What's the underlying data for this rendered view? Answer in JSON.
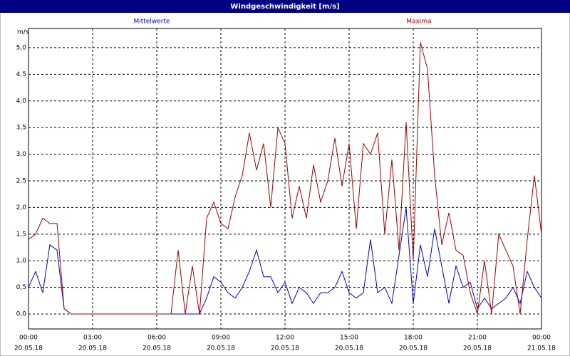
{
  "chart_data": {
    "type": "line",
    "title": "Windgeschwindigkeit [m/s]",
    "y_unit": "m/s",
    "x": [
      0,
      20,
      40,
      60,
      80,
      100,
      120,
      140,
      160,
      180,
      200,
      220,
      240,
      260,
      280,
      300,
      320,
      340,
      360,
      380,
      400,
      420,
      440,
      460,
      480,
      500,
      520,
      540,
      560,
      580,
      600,
      620,
      640,
      660,
      680,
      700,
      720,
      740,
      760,
      780,
      800,
      820,
      840,
      860,
      880,
      900,
      920,
      940,
      960,
      980,
      1000,
      1020,
      1040,
      1060,
      1080,
      1100,
      1120,
      1140,
      1160,
      1180,
      1200,
      1220,
      1240,
      1260,
      1280,
      1300,
      1320,
      1340,
      1360,
      1380,
      1400,
      1420,
      1440
    ],
    "series": [
      {
        "name": "Mittelwerte",
        "color": "#0000c0",
        "values": [
          0.5,
          0.8,
          0.4,
          1.3,
          1.2,
          0.1,
          0,
          0,
          0,
          0,
          0,
          0,
          0,
          0,
          0,
          0,
          0,
          0,
          0,
          0,
          0,
          0,
          0,
          0,
          0,
          0.3,
          0.7,
          0.6,
          0.4,
          0.3,
          0.5,
          0.8,
          1.2,
          0.7,
          0.7,
          0.4,
          0.6,
          0.2,
          0.5,
          0.4,
          0.2,
          0.4,
          0.4,
          0.5,
          0.8,
          0.4,
          0.3,
          0.4,
          1.4,
          0.4,
          0.5,
          0.2,
          1.1,
          2.0,
          0.2,
          1.3,
          0.7,
          1.6,
          0.9,
          0.2,
          0.9,
          0.5,
          0.6,
          0.1,
          0.3,
          0.1,
          0.2,
          0.3,
          0.5,
          0.2,
          0.8,
          0.5,
          0.3
        ]
      },
      {
        "name": "Maxima",
        "color": "#a00000",
        "values": [
          1.4,
          1.5,
          1.8,
          1.7,
          1.7,
          0.1,
          0,
          0,
          0,
          0,
          0,
          0,
          0,
          0,
          0,
          0,
          0,
          0,
          0,
          0,
          0,
          1.2,
          0,
          0.9,
          0,
          1.8,
          2.1,
          1.7,
          1.6,
          2.2,
          2.6,
          3.4,
          2.7,
          3.2,
          2.0,
          3.5,
          3.2,
          1.8,
          2.4,
          1.8,
          2.8,
          2.1,
          2.5,
          3.3,
          2.4,
          3.2,
          1.6,
          3.2,
          3.0,
          3.4,
          1.5,
          2.9,
          1.2,
          3.6,
          1.0,
          5.1,
          4.6,
          2.6,
          1.3,
          1.9,
          1.2,
          1.1,
          0.4,
          0,
          1.0,
          0,
          1.5,
          1.2,
          0.9,
          0,
          1.4,
          2.6,
          1.5
        ]
      }
    ],
    "xlim": [
      0,
      1440
    ],
    "xticks": [
      {
        "value": 0,
        "label": "00:00"
      },
      {
        "value": 180,
        "label": "03:00"
      },
      {
        "value": 360,
        "label": "06:00"
      },
      {
        "value": 540,
        "label": "09:00"
      },
      {
        "value": 720,
        "label": "12:00"
      },
      {
        "value": 900,
        "label": "15:00"
      },
      {
        "value": 1080,
        "label": "18:00"
      },
      {
        "value": 1260,
        "label": "21:00"
      },
      {
        "value": 1440,
        "label": "00:00"
      }
    ],
    "xtick_dates": [
      "20.05.18",
      "20.05.18",
      "20.05.18",
      "20.05.18",
      "20.05.18",
      "20.05.18",
      "20.05.18",
      "20.05.18",
      "21.05.18"
    ],
    "ylim": [
      -0.28,
      5.36
    ],
    "yticks": [
      {
        "value": 0,
        "label": "0,0"
      },
      {
        "value": 0.5,
        "label": "0,5"
      },
      {
        "value": 1,
        "label": "1,0"
      },
      {
        "value": 1.5,
        "label": "1,5"
      },
      {
        "value": 2,
        "label": "2,0"
      },
      {
        "value": 2.5,
        "label": "2,5"
      },
      {
        "value": 3,
        "label": "3,0"
      },
      {
        "value": 3.5,
        "label": "3,5"
      },
      {
        "value": 4,
        "label": "4,0"
      },
      {
        "value": 4.5,
        "label": "4,5"
      },
      {
        "value": 5,
        "label": "5,0"
      }
    ],
    "grid": true
  }
}
